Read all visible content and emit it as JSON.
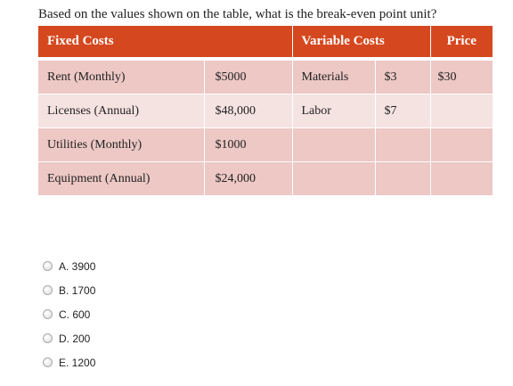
{
  "question": "Based on the values shown on the table, what is the break-even point unit?",
  "table": {
    "headers": {
      "fixed_costs": "Fixed Costs",
      "variable_costs": "Variable Costs",
      "price": "Price"
    },
    "rows": [
      {
        "fixed_label": "Rent (Monthly)",
        "fixed_value": "$5000",
        "variable_label": "Materials",
        "variable_value": "$3",
        "price": "$30"
      },
      {
        "fixed_label": "Licenses (Annual)",
        "fixed_value": "$48,000",
        "variable_label": "Labor",
        "variable_value": "$7",
        "price": ""
      },
      {
        "fixed_label": "Utilities (Monthly)",
        "fixed_value": "$1000",
        "variable_label": "",
        "variable_value": "",
        "price": ""
      },
      {
        "fixed_label": "Equipment (Annual)",
        "fixed_value": "$24,000",
        "variable_label": "",
        "variable_value": "",
        "price": ""
      }
    ]
  },
  "options": [
    {
      "label": "A. 3900"
    },
    {
      "label": "B. 1700"
    },
    {
      "label": "C. 600"
    },
    {
      "label": "D. 200"
    },
    {
      "label": "E. 1200"
    }
  ],
  "colors": {
    "header_bg": "#d5481f",
    "row_odd_bg": "#edc8c5",
    "row_even_bg": "#f5e3e1"
  }
}
